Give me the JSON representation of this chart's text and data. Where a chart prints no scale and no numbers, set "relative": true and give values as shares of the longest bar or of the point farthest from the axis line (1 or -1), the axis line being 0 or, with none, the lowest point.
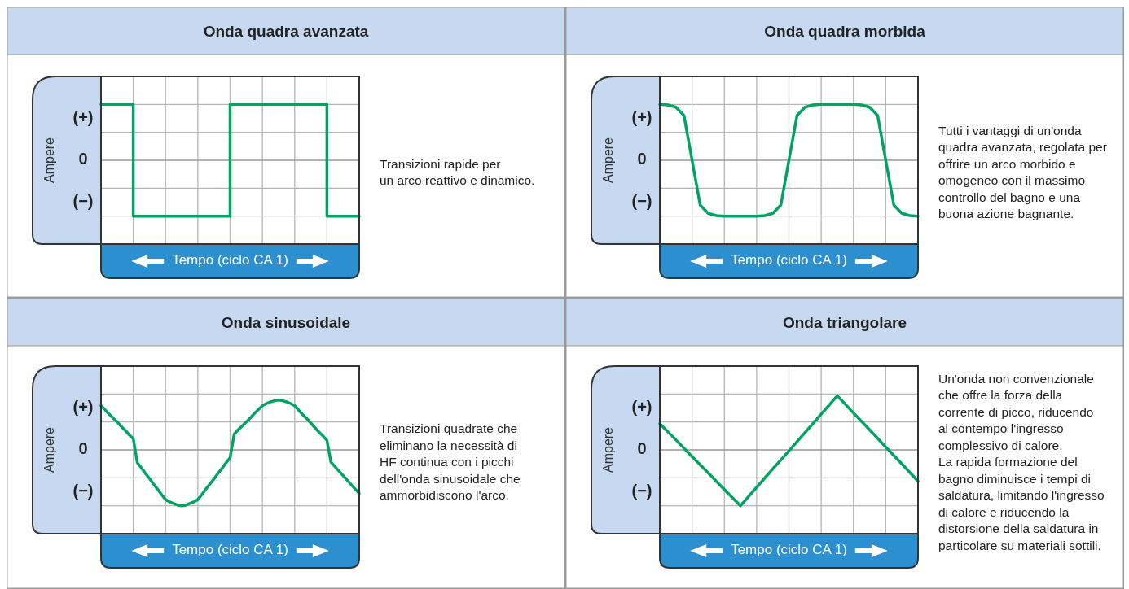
{
  "chart_data": [
    {
      "type": "step",
      "title": "Onda quadra avanzata",
      "xlabel": "Tempo (ciclo CA 1)",
      "ylabel": "Ampere",
      "annotations": [
        "(+)",
        "0",
        "(−)",
        "Transizioni rapide per\nun arco reattivo e dinamico."
      ],
      "relative": true,
      "grid": true,
      "color": "#00a362",
      "categories": [
        null,
        null,
        null,
        null,
        null,
        null,
        null,
        null,
        null
      ],
      "values": [
        1,
        -1,
        -1,
        -1,
        1,
        1,
        1,
        -1,
        -1
      ]
    },
    {
      "type": "line",
      "title": "Onda quadra morbida",
      "xlabel": "Tempo (ciclo CA 1)",
      "ylabel": "Ampere",
      "annotations": [
        "(+)",
        "0",
        "(−)",
        "Tutti i vantaggi di un'onda\nquadra avanzata, regolata per\noffrire un arco morbido e\nomogeneo con il massimo\ncontrollo del bagno e una\nbuona azione bagnante."
      ],
      "relative": true,
      "grid": true,
      "color": "#00a362",
      "categories": [
        null,
        null,
        null,
        null,
        null,
        null,
        null,
        null,
        null,
        null,
        null,
        null,
        null,
        null,
        null,
        null,
        null,
        null,
        null,
        null,
        null,
        null,
        null,
        null,
        null,
        null,
        null,
        null,
        null,
        null,
        null,
        null,
        null
      ],
      "values": [
        1,
        0.99,
        0.95,
        0.8,
        0,
        -0.8,
        -0.95,
        -0.99,
        -1,
        -1,
        -1,
        -1,
        -1,
        -0.99,
        -0.95,
        -0.8,
        0,
        0.8,
        0.95,
        0.99,
        1,
        1,
        1,
        1,
        1,
        0.99,
        0.95,
        0.8,
        0,
        -0.8,
        -0.95,
        -0.99,
        -1
      ]
    },
    {
      "type": "line",
      "title": "Onda sinusoidale",
      "xlabel": "Tempo (ciclo CA 1)",
      "ylabel": "Ampere",
      "annotations": [
        "(+)",
        "0",
        "(−)",
        "Transizioni quadrate che\neliminano la necessità di\nHF continua con i picchi\ndell'onda sinusoidale che\nammorbidiscono l'arco."
      ],
      "relative": true,
      "grid": true,
      "color": "#00a362",
      "categories": [
        null,
        null,
        null,
        null,
        null,
        null,
        null,
        null,
        null,
        null,
        null,
        null,
        null,
        null,
        null,
        null,
        null,
        null,
        null,
        null,
        null,
        null,
        null,
        null,
        null,
        null,
        null,
        null,
        null,
        null,
        null,
        null,
        null,
        null,
        null,
        null,
        null,
        null,
        null,
        null,
        null,
        null,
        null,
        null,
        null,
        null,
        null,
        null,
        null,
        null,
        null,
        null,
        null,
        null,
        null,
        null,
        null,
        null,
        null,
        null,
        null,
        null,
        null,
        null,
        null
      ],
      "values": [
        0.79,
        0.72,
        0.64,
        0.57,
        0.5,
        0.42,
        0.35,
        0.27,
        0.2,
        -0.23,
        -0.32,
        -0.42,
        -0.51,
        -0.61,
        -0.7,
        -0.8,
        -0.89,
        -0.93,
        -0.96,
        -0.99,
        -1,
        -0.99,
        -0.96,
        -0.93,
        -0.89,
        -0.8,
        -0.7,
        -0.61,
        -0.52,
        -0.42,
        -0.33,
        -0.23,
        -0.14,
        0.28,
        0.36,
        0.43,
        0.5,
        0.57,
        0.65,
        0.72,
        0.79,
        0.83,
        0.86,
        0.88,
        0.89,
        0.88,
        0.86,
        0.83,
        0.79,
        0.71,
        0.63,
        0.56,
        0.48,
        0.4,
        0.32,
        0.25,
        0.17,
        -0.22,
        -0.3,
        -0.38,
        -0.46,
        -0.54,
        -0.62,
        -0.7,
        -0.78
      ]
    },
    {
      "type": "line",
      "title": "Onda triangolare",
      "xlabel": "Tempo (ciclo CA 1)",
      "ylabel": "Ampere",
      "annotations": [
        "(+)",
        "0",
        "(−)",
        "Un'onda non convenzionale\nche offre la forza della\ncorrente di picco, riducendo\nal contempo l'ingresso\ncomplessivo di calore.\nLa rapida formazione del\nbagno diminuisce i tempi di\nsaldatura, limitando l'ingresso\ndi calore e riducendo la\ndistorsione della saldatura in\nparticolare su materiali sottili."
      ],
      "relative": true,
      "grid": true,
      "color": "#00a362",
      "categories": [
        null,
        null,
        null,
        null,
        null,
        null,
        null,
        null,
        null,
        null,
        null,
        null,
        null,
        null,
        null,
        null,
        null
      ],
      "values": [
        0.47,
        0.18,
        -0.12,
        -0.41,
        -0.71,
        -1,
        -0.67,
        -0.34,
        -0.02,
        0.31,
        0.64,
        0.97,
        0.66,
        0.36,
        0.05,
        -0.25,
        -0.56
      ]
    }
  ]
}
